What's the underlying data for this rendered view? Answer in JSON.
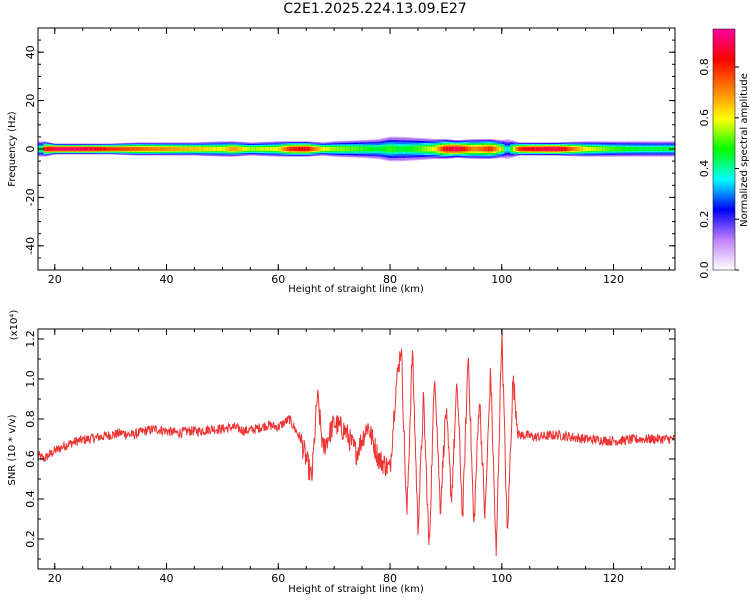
{
  "title": "C2E1.2025.224.13.09.E27",
  "chart_data": [
    {
      "type": "heatmap",
      "title": "C2E1.2025.224.13.09.E27",
      "xlabel": "Height of straight line (km)",
      "ylabel": "Frequency (Hz)",
      "xlim": [
        17,
        131
      ],
      "ylim": [
        -50,
        50
      ],
      "x_ticks": [
        20,
        40,
        60,
        80,
        100,
        120
      ],
      "y_ticks": [
        -40,
        -20,
        0,
        20,
        40
      ],
      "colorbar": {
        "label": "Normalized spectral amplitude",
        "range": [
          0,
          0.95
        ],
        "ticks": [
          0.0,
          0.2,
          0.4,
          0.6,
          0.8
        ],
        "colors": [
          "#ffffff",
          "#c080ff",
          "#0000ff",
          "#00ffff",
          "#00ff00",
          "#ffff00",
          "#ff8000",
          "#ff0000",
          "#ff00a0"
        ]
      },
      "x": [
        18,
        20,
        25,
        30,
        35,
        40,
        45,
        50,
        52,
        55,
        60,
        62,
        65,
        68,
        70,
        75,
        78,
        80,
        82,
        85,
        88,
        90,
        92,
        95,
        98,
        100,
        101,
        103,
        105,
        110,
        115,
        120,
        125,
        131
      ],
      "bandwidth_hz": [
        3,
        2,
        2,
        2,
        2.5,
        2.5,
        2.5,
        3,
        3,
        2.5,
        3,
        3,
        3,
        2.5,
        3,
        3.5,
        4,
        5,
        5,
        4.5,
        4,
        4,
        3.5,
        4,
        4,
        3.5,
        4,
        2.5,
        2.5,
        2.5,
        3,
        3,
        3,
        3
      ],
      "center_amplitude": [
        0.8,
        0.9,
        0.9,
        0.8,
        0.75,
        0.7,
        0.65,
        0.6,
        0.7,
        0.55,
        0.6,
        0.8,
        0.85,
        0.6,
        0.55,
        0.5,
        0.45,
        0.5,
        0.45,
        0.5,
        0.6,
        0.85,
        0.9,
        0.7,
        0.8,
        0.6,
        0.3,
        0.8,
        0.85,
        0.9,
        0.6,
        0.5,
        0.45,
        0.45
      ]
    },
    {
      "type": "line",
      "xlabel": "Height of straight line (km)",
      "ylabel": "SNR (10 * v/v)",
      "y_multiplier": "(x10⁴)",
      "xlim": [
        17,
        131
      ],
      "ylim": [
        0.05,
        1.25
      ],
      "x_ticks": [
        20,
        40,
        60,
        80,
        100,
        120
      ],
      "y_ticks": [
        0.2,
        0.4,
        0.6,
        0.8,
        1.0,
        1.2
      ],
      "color": "#ee3333",
      "x": [
        17,
        18,
        20,
        22,
        24,
        26,
        28,
        30,
        32,
        34,
        36,
        38,
        40,
        42,
        44,
        46,
        48,
        50,
        52,
        54,
        56,
        58,
        60,
        62,
        64,
        65,
        66,
        67,
        68,
        70,
        72,
        74,
        76,
        78,
        80,
        81,
        82,
        83,
        84,
        85,
        86,
        87,
        88,
        89,
        90,
        91,
        92,
        93,
        94,
        95,
        96,
        97,
        98,
        99,
        100,
        101,
        102,
        103,
        104,
        106,
        110,
        115,
        120,
        125,
        131
      ],
      "y": [
        0.62,
        0.6,
        0.64,
        0.67,
        0.69,
        0.7,
        0.71,
        0.72,
        0.73,
        0.72,
        0.74,
        0.75,
        0.74,
        0.73,
        0.74,
        0.74,
        0.75,
        0.75,
        0.76,
        0.74,
        0.75,
        0.77,
        0.76,
        0.8,
        0.7,
        0.6,
        0.5,
        0.92,
        0.65,
        0.78,
        0.74,
        0.63,
        0.77,
        0.6,
        0.55,
        0.94,
        1.17,
        0.3,
        1.15,
        0.25,
        0.9,
        0.14,
        1.05,
        0.35,
        0.85,
        0.4,
        0.98,
        0.3,
        1.14,
        0.25,
        0.92,
        0.3,
        1.05,
        0.1,
        1.25,
        0.2,
        1.0,
        0.72,
        0.72,
        0.71,
        0.72,
        0.7,
        0.69,
        0.7,
        0.7
      ]
    }
  ]
}
